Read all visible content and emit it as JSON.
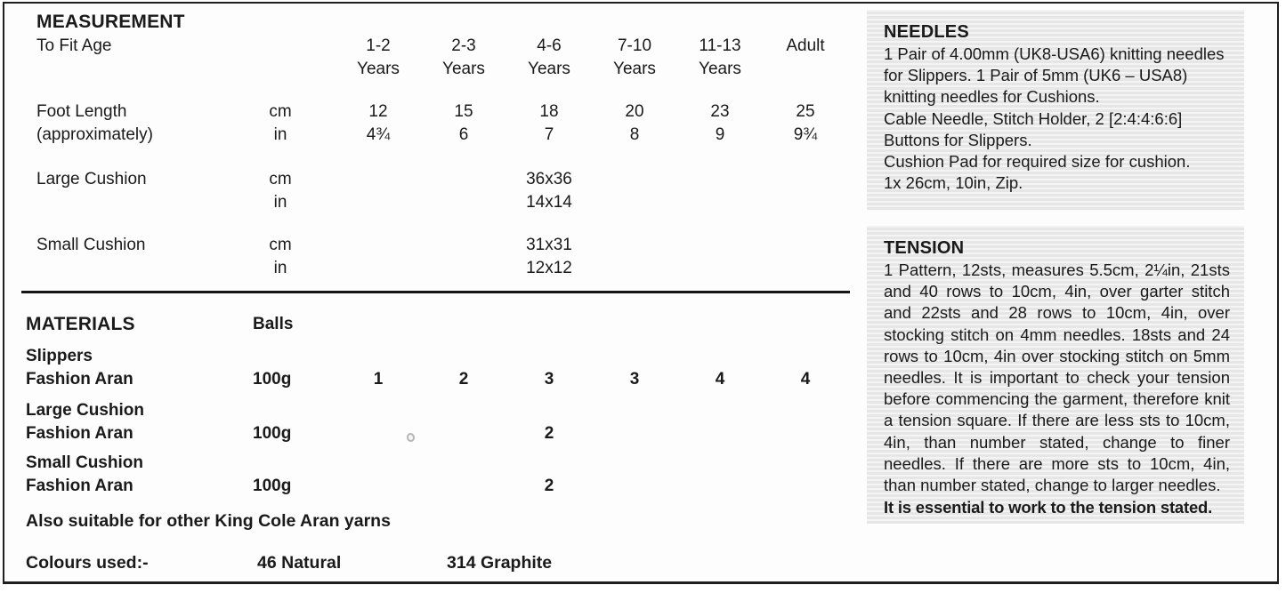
{
  "measurement": {
    "title": "MEASUREMENT",
    "fit_age_label": "To Fit Age",
    "sizes": [
      {
        "top": "1-2",
        "bottom": "Years"
      },
      {
        "top": "2-3",
        "bottom": "Years"
      },
      {
        "top": "4-6",
        "bottom": "Years"
      },
      {
        "top": "7-10",
        "bottom": "Years"
      },
      {
        "top": "11-13",
        "bottom": "Years"
      },
      {
        "top": "Adult",
        "bottom": ""
      }
    ],
    "rows": [
      {
        "label": "Foot Length",
        "sublabel": "(approximately)",
        "unit_top": "cm",
        "unit_bottom": "in",
        "top_values": [
          "12",
          "15",
          "18",
          "20",
          "23",
          "25"
        ],
        "bottom_values": [
          "4¾",
          "6",
          "7",
          "8",
          "9",
          "9¾"
        ]
      },
      {
        "label": "Large Cushion",
        "sublabel": "",
        "unit_top": "cm",
        "unit_bottom": "in",
        "top_values": [
          "",
          "",
          "36x36",
          "",
          "",
          ""
        ],
        "bottom_values": [
          "",
          "",
          "14x14",
          "",
          "",
          ""
        ]
      },
      {
        "label": "Small Cushion",
        "sublabel": "",
        "unit_top": "cm",
        "unit_bottom": "in",
        "top_values": [
          "",
          "",
          "31x31",
          "",
          "",
          ""
        ],
        "bottom_values": [
          "",
          "",
          "12x12",
          "",
          "",
          ""
        ]
      }
    ]
  },
  "materials": {
    "title": "MATERIALS",
    "balls_header": "Balls",
    "rows": [
      {
        "name": "Slippers",
        "yarn": "Fashion Aran",
        "ball_weight": "100g",
        "balls": [
          "1",
          "2",
          "3",
          "3",
          "4",
          "4"
        ]
      },
      {
        "name": "Large Cushion",
        "yarn": "Fashion Aran",
        "ball_weight": "100g",
        "balls": [
          "",
          "",
          "2",
          "",
          "",
          ""
        ]
      },
      {
        "name": "Small Cushion",
        "yarn": "Fashion Aran",
        "ball_weight": "100g",
        "balls": [
          "",
          "",
          "2",
          "",
          "",
          ""
        ]
      }
    ],
    "note": "Also suitable for other King Cole Aran yarns",
    "colours_label": "Colours used:-",
    "colour_1": "46 Natural",
    "colour_2": "314 Graphite"
  },
  "needles": {
    "title": "NEEDLES",
    "paragraphs": [
      "1 Pair of 4.00mm (UK8-USA6) knitting needles for Slippers. 1 Pair of 5mm (UK6 – USA8) knitting needles for Cushions.",
      "Cable Needle, Stitch Holder, 2 [2:4:4:6:6] Buttons for Slippers.",
      "Cushion Pad for required size for cushion.",
      "1x 26cm, 10in, Zip."
    ]
  },
  "tension": {
    "title": "TENSION",
    "body": "1 Pattern, 12sts, measures 5.5cm, 2¼in, 21sts and 40 rows to 10cm, 4in, over garter stitch and 22sts and 28 rows to 10cm, 4in, over stocking stitch on 4mm needles. 18sts and 24 rows to 10cm, 4in over stocking stitch on 5mm needles. It is important to check your tension before commencing the garment, therefore knit a tension square. If there are less sts to 10cm, 4in, than number stated, change to finer needles. If there are more sts to 10cm, 4in, than number stated, change to larger needles.",
    "bold_note": "It is essential to work to the tension stated."
  }
}
